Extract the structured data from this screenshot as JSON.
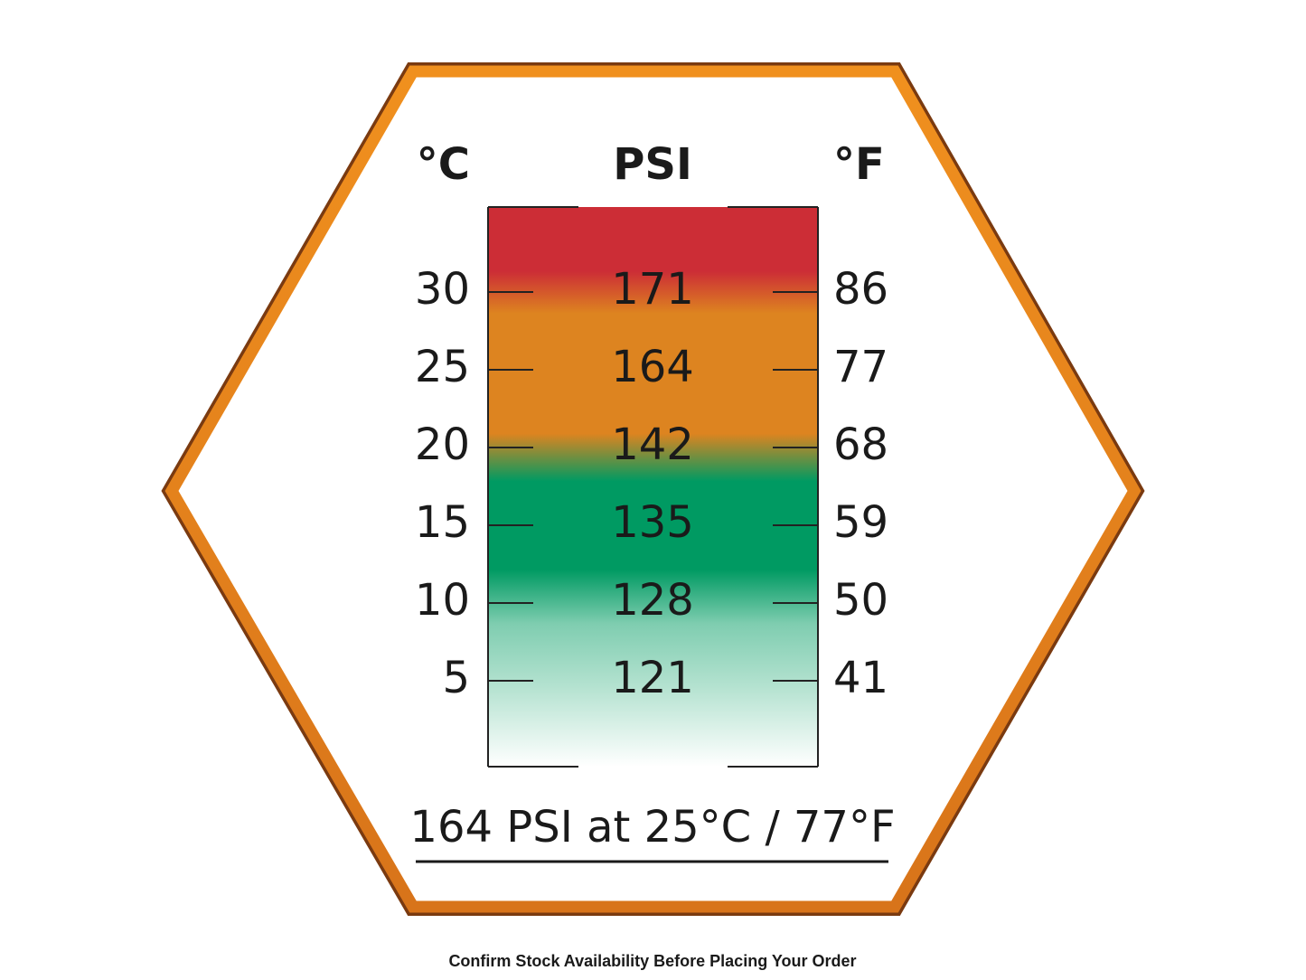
{
  "headers": {
    "celsius": "°C",
    "psi": "PSI",
    "fahrenheit": "°F"
  },
  "rows": [
    [
      30,
      171,
      86
    ],
    [
      25,
      164,
      77
    ],
    [
      20,
      142,
      68
    ],
    [
      15,
      135,
      59
    ],
    [
      10,
      128,
      50
    ],
    [
      5,
      121,
      41
    ]
  ],
  "summary": "164 PSI at 25°C / 77°F",
  "footer": "Confirm Stock Availability Before Placing Your Order"
}
